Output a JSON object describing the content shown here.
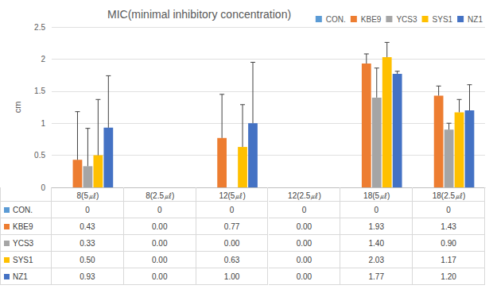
{
  "chart_data": {
    "type": "bar",
    "title": "MIC(minimal inhibitory concentration)",
    "y_label": "cm",
    "categories": [
      "8(5㎕)",
      "8(2.5㎕)",
      "12(5㎕)",
      "12(2.5㎕)",
      "18(5㎕)",
      "18(2.5㎕)"
    ],
    "series": [
      {
        "name": "CON.",
        "color": "#5b9bd5",
        "values": [
          0,
          0,
          0,
          0,
          0,
          0
        ],
        "value_labels": [
          "0",
          "0",
          "0",
          "0",
          "0",
          "0"
        ],
        "errors": [
          0,
          0,
          0,
          0,
          0,
          0
        ]
      },
      {
        "name": "KBE9",
        "color": "#ed7d31",
        "values": [
          0.43,
          0,
          0.77,
          0,
          1.93,
          1.43
        ],
        "value_labels": [
          "0.43",
          "0.00",
          "0.77",
          "0.00",
          "1.93",
          "1.43"
        ],
        "errors": [
          0.75,
          0,
          0.68,
          0,
          0.15,
          0.15
        ]
      },
      {
        "name": "YCS3",
        "color": "#a5a5a5",
        "values": [
          0.33,
          0,
          0,
          0,
          1.4,
          0.9
        ],
        "value_labels": [
          "0.33",
          "0.00",
          "0.00",
          "0.00",
          "1.40",
          "0.90"
        ],
        "errors": [
          0.59,
          0,
          0,
          0,
          0.46,
          0.1
        ]
      },
      {
        "name": "SYS1",
        "color": "#ffc000",
        "values": [
          0.5,
          0,
          0.63,
          0,
          2.03,
          1.17
        ],
        "value_labels": [
          "0.50",
          "0.00",
          "0.63",
          "0.00",
          "2.03",
          "1.17"
        ],
        "errors": [
          0.87,
          0,
          0.66,
          0,
          0.23,
          0.2
        ]
      },
      {
        "name": "NZ1",
        "color": "#4472c4",
        "values": [
          0.93,
          0,
          1,
          0,
          1.77,
          1.2
        ],
        "value_labels": [
          "0.93",
          "0.00",
          "1.00",
          "0.00",
          "1.77",
          "1.20"
        ],
        "errors": [
          0.81,
          0,
          0.95,
          0,
          0.04,
          0.4
        ]
      }
    ],
    "ylim": [
      0,
      2.5
    ],
    "yticks": [
      0,
      0.5,
      1,
      1.5,
      2,
      2.5
    ],
    "grid": true,
    "legend": "top right"
  }
}
